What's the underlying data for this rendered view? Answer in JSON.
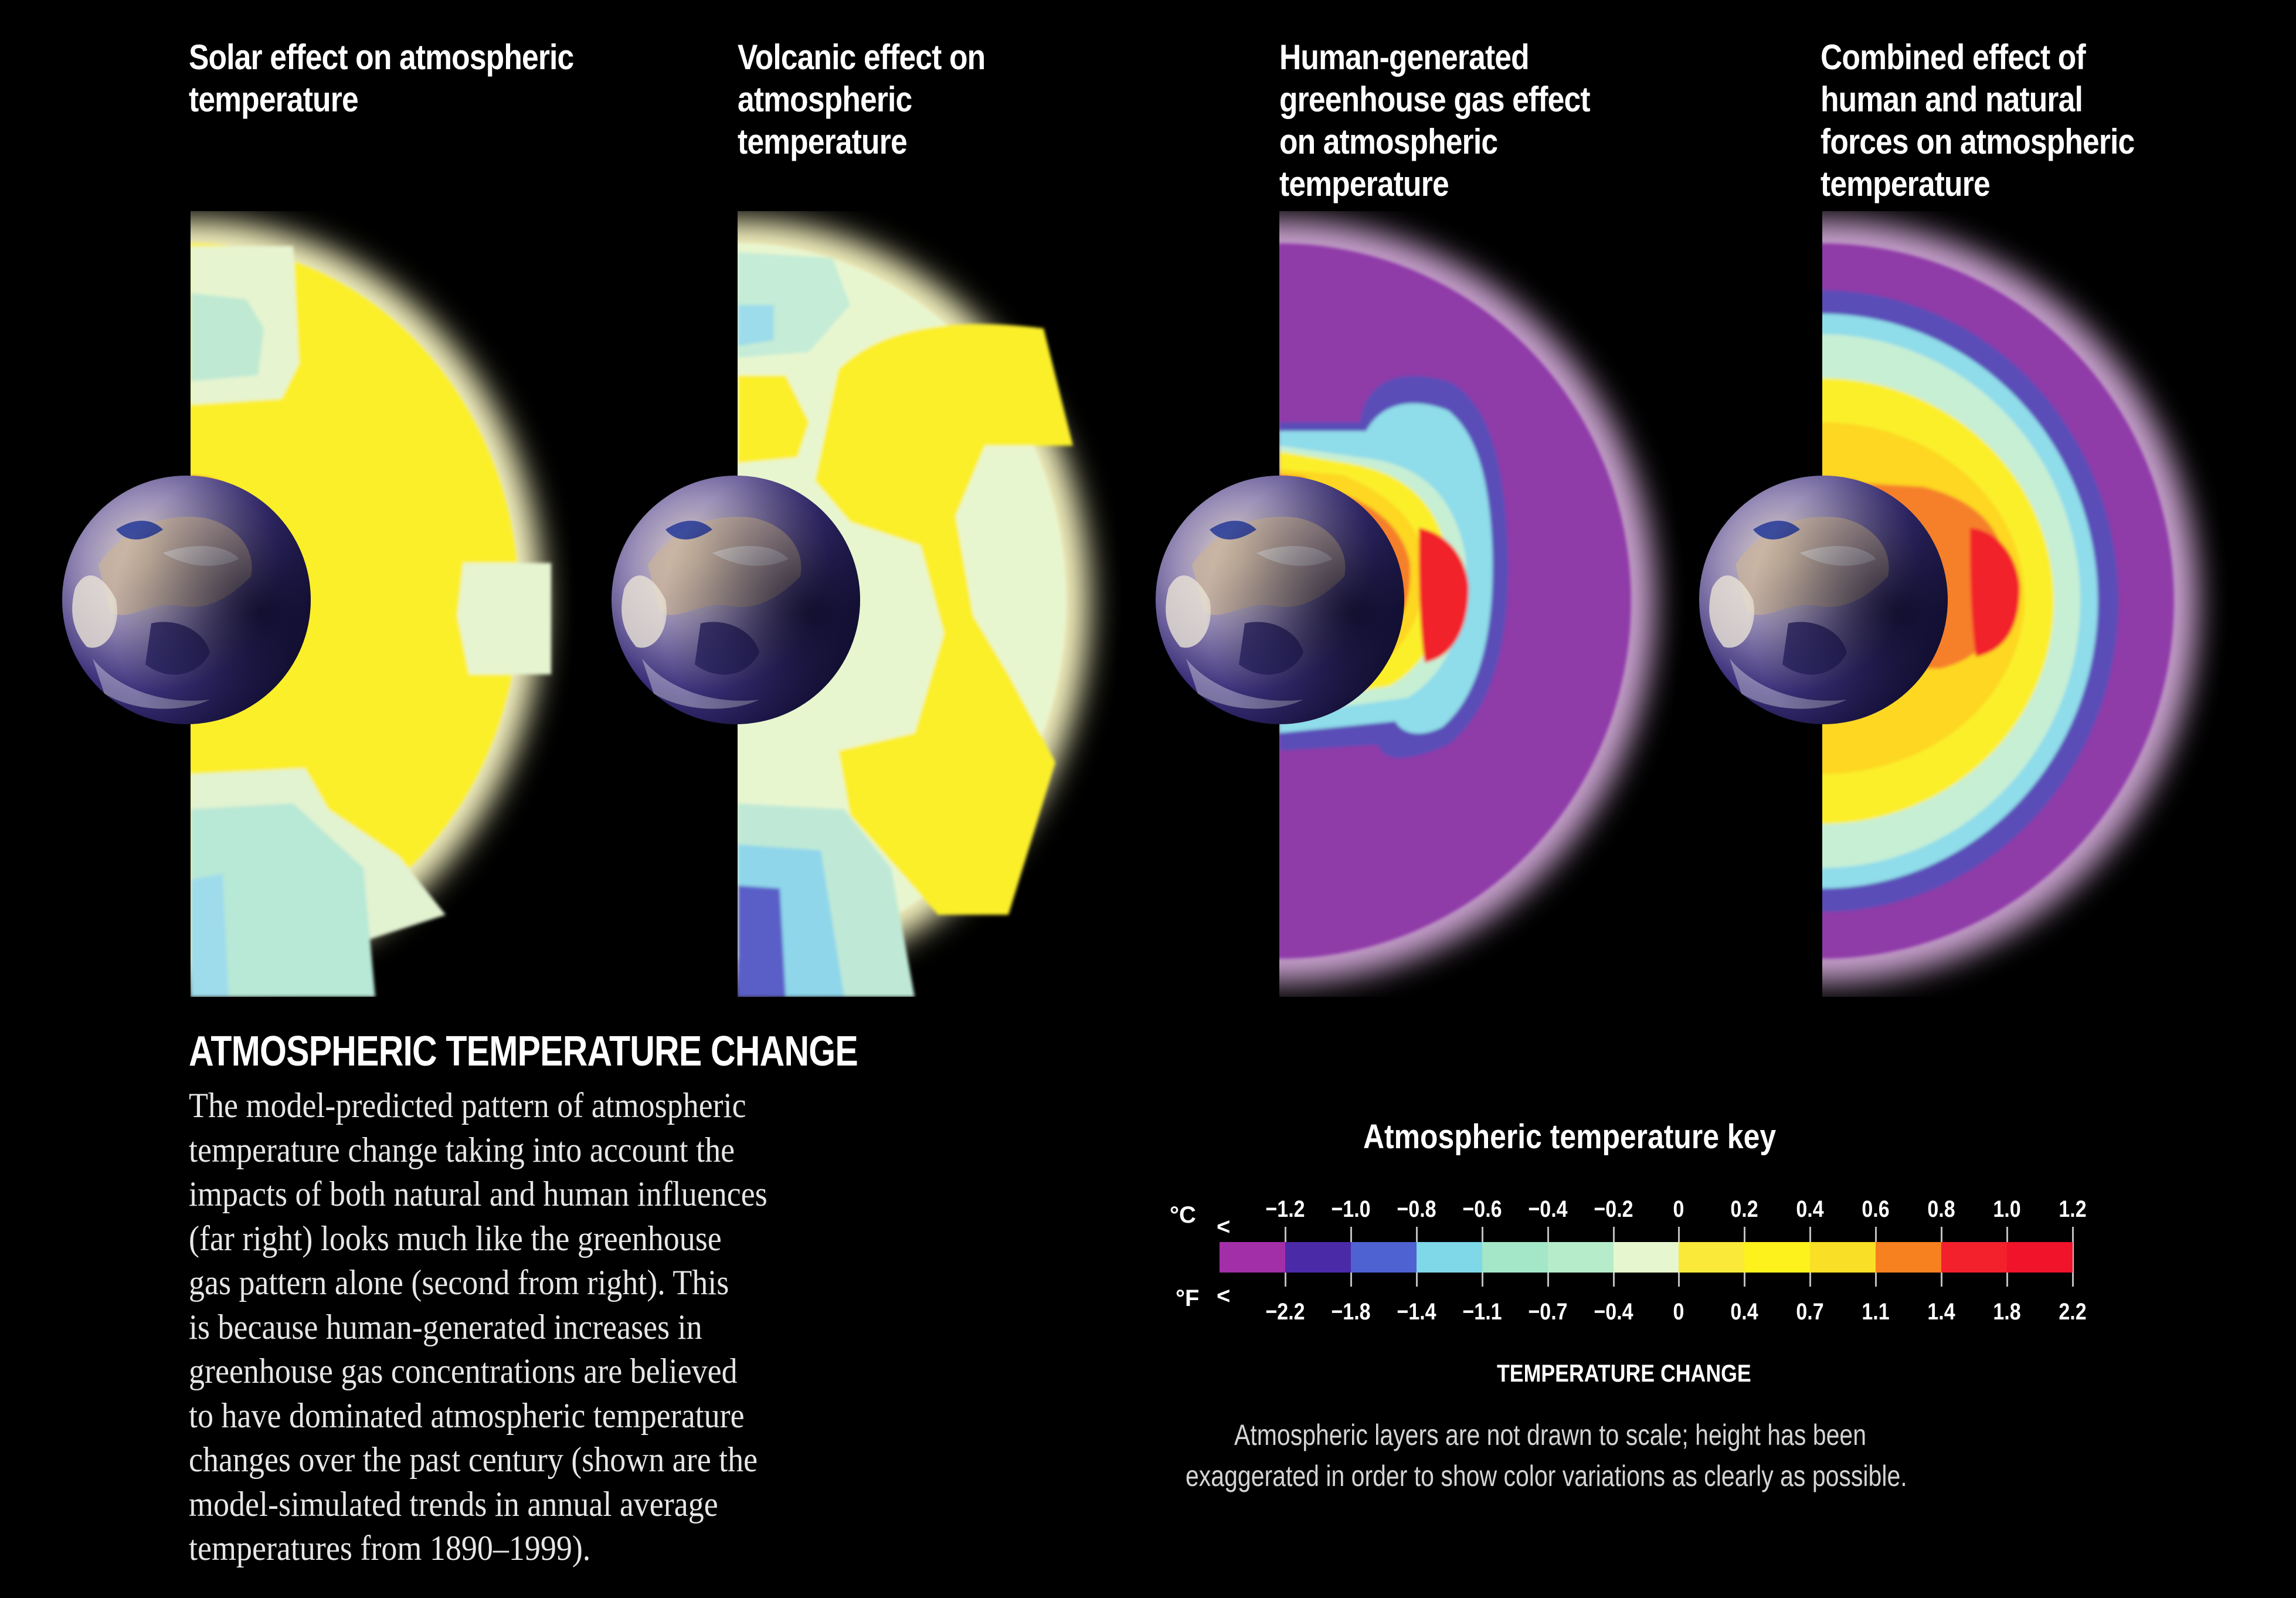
{
  "panels": [
    {
      "id": "solar",
      "title_lines": [
        "Solar effect on atmospheric",
        "temperature"
      ]
    },
    {
      "id": "volcanic",
      "title_lines": [
        "Volcanic effect on",
        "atmospheric",
        "temperature"
      ]
    },
    {
      "id": "greenhouse",
      "title_lines": [
        "Human-generated",
        "greenhouse gas effect",
        "on atmospheric",
        "temperature"
      ]
    },
    {
      "id": "combined",
      "title_lines": [
        "Combined effect of",
        "human and natural",
        "forces on atmospheric",
        "temperature"
      ]
    }
  ],
  "caption": {
    "heading": "ATMOSPHERIC TEMPERATURE CHANGE",
    "body_lines": [
      "The model-predicted pattern of atmospheric",
      "temperature change taking into account the",
      "impacts of both natural and human influences",
      "(far right) looks much like the greenhouse",
      "gas pattern alone (second from right). This",
      "is because human-generated increases in",
      "greenhouse gas concentrations are believed",
      "to have dominated atmospheric temperature",
      "changes over the past century (shown are the",
      "model-simulated trends in annual average",
      "temperatures from 1890–1999)."
    ]
  },
  "key": {
    "title": "Atmospheric temperature key",
    "celsius_unit": "°C",
    "fahrenheit_unit": "°F",
    "less_than": "<",
    "celsius_ticks": [
      "−1.2",
      "−1.0",
      "−0.8",
      "−0.6",
      "−0.4",
      "−0.2",
      "0",
      "0.2",
      "0.4",
      "0.6",
      "0.8",
      "1.0",
      "1.2"
    ],
    "fahrenheit_ticks": [
      "−2.2",
      "−1.8",
      "−1.4",
      "−1.1",
      "−0.7",
      "−0.4",
      "0",
      "0.4",
      "0.7",
      "1.1",
      "1.4",
      "1.8",
      "2.2"
    ],
    "swatch_colors": [
      "#a22fa8",
      "#4b2aa8",
      "#4f62d2",
      "#7fd8e8",
      "#a4e6c8",
      "#b6ecc9",
      "#e6f7d0",
      "#fbe93a",
      "#fdf21c",
      "#f9df25",
      "#f7801f",
      "#f3212c",
      "#f0132a"
    ],
    "xlabel": "TEMPERATURE CHANGE"
  },
  "footnote_lines": [
    "Atmospheric layers are not drawn to scale; height has been",
    "exaggerated in order to show color variations as clearly as possible."
  ],
  "colors": {
    "background": "#000000",
    "purple": "#8f3aa8",
    "deep_blue": "#5a4db8",
    "cyan": "#8fdcea",
    "mint": "#c7efd4",
    "pale": "#e9f7d2",
    "yellow": "#fbef2a",
    "orange": "#f6802a",
    "red": "#f2222c"
  }
}
